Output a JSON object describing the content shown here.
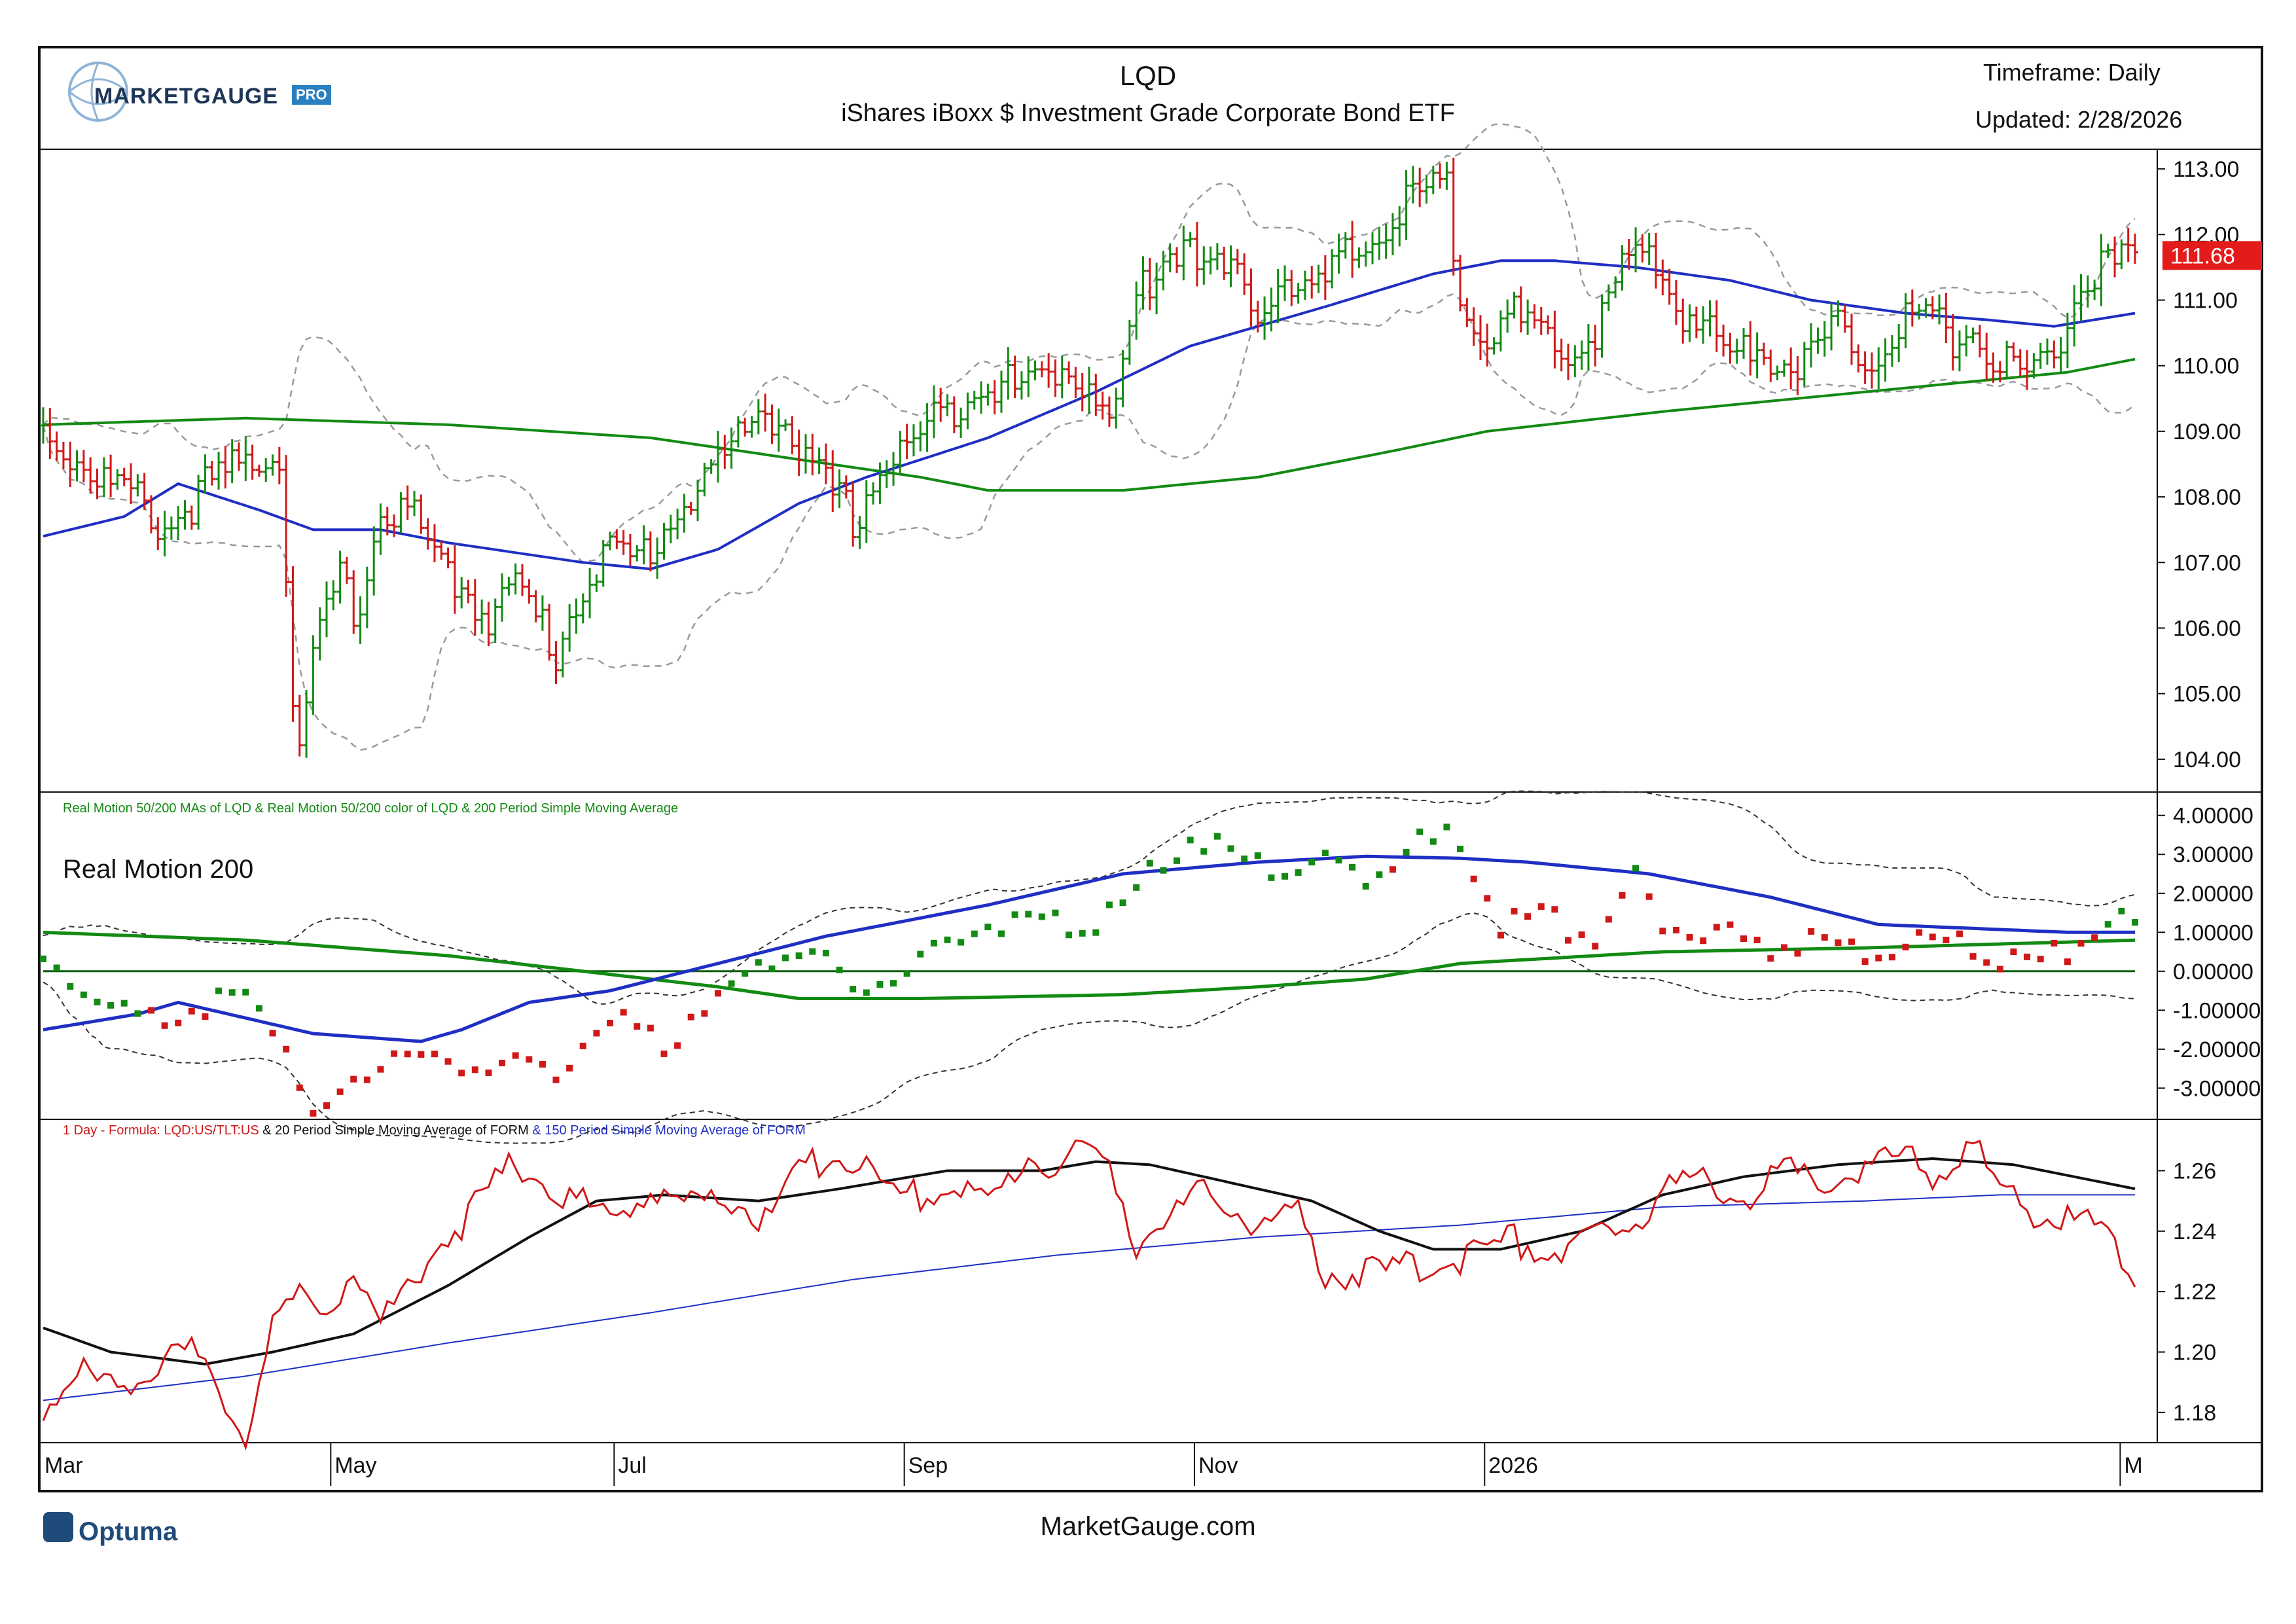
{
  "header": {
    "symbol": "LQD",
    "name": "iShares iBoxx $ Investment Grade Corporate Bond ETF",
    "timeframe": "Timeframe: Daily",
    "updated": "Updated: 2/28/2026",
    "logo_text": "MARKETGAUGE",
    "logo_badge": "PRO"
  },
  "footer": {
    "brand": "Optuma",
    "site": "MarketGauge.com"
  },
  "colors": {
    "up": "#138a13",
    "down": "#d01818",
    "ma_blue": "#1f2fc4",
    "ma_green": "#138a13",
    "band": "#9a9a9a",
    "last_price_bg": "#e31b1b"
  },
  "chart_data": [
    {
      "id": "price",
      "type": "ohlc",
      "title": "LQD",
      "ylim": [
        103.5,
        113.3
      ],
      "yticks": [
        "113.00",
        "112.00",
        "111.00",
        "110.00",
        "109.00",
        "108.00",
        "107.00",
        "106.00",
        "105.00",
        "104.00"
      ],
      "x_months": [
        "Mar",
        "May",
        "Jul",
        "Sep",
        "Nov",
        "2026",
        "M"
      ],
      "last_price": "111.68",
      "anchors_close": [
        [
          0,
          109.2
        ],
        [
          8,
          108.5
        ],
        [
          14,
          108.1
        ],
        [
          18,
          107.7
        ],
        [
          24,
          108.3
        ],
        [
          30,
          108.7
        ],
        [
          35,
          108.9
        ],
        [
          36,
          107.0
        ],
        [
          37,
          105.0
        ],
        [
          38,
          104.3
        ],
        [
          40,
          105.6
        ],
        [
          42,
          106.4
        ],
        [
          44,
          107.0
        ],
        [
          46,
          106.3
        ],
        [
          50,
          107.9
        ],
        [
          54,
          108.0
        ],
        [
          58,
          107.2
        ],
        [
          62,
          106.8
        ],
        [
          66,
          106.4
        ],
        [
          70,
          106.8
        ],
        [
          74,
          106.2
        ],
        [
          76,
          105.8
        ],
        [
          80,
          106.9
        ],
        [
          84,
          107.3
        ],
        [
          88,
          107.2
        ],
        [
          92,
          107.7
        ],
        [
          96,
          108.2
        ],
        [
          100,
          108.7
        ],
        [
          104,
          109.1
        ],
        [
          106,
          109.6
        ],
        [
          110,
          109.3
        ],
        [
          114,
          108.5
        ],
        [
          118,
          108.1
        ],
        [
          120,
          107.8
        ],
        [
          124,
          108.6
        ],
        [
          128,
          108.9
        ],
        [
          132,
          109.3
        ],
        [
          136,
          109.7
        ],
        [
          140,
          110.0
        ],
        [
          144,
          109.8
        ],
        [
          148,
          110.0
        ],
        [
          152,
          110.2
        ],
        [
          156,
          109.8
        ],
        [
          158,
          109.2
        ],
        [
          160,
          110.1
        ],
        [
          162,
          111.2
        ],
        [
          166,
          111.8
        ],
        [
          170,
          112.2
        ],
        [
          172,
          111.7
        ],
        [
          176,
          111.5
        ],
        [
          180,
          111.1
        ],
        [
          184,
          111.6
        ],
        [
          188,
          111.2
        ],
        [
          192,
          111.7
        ],
        [
          196,
          112.0
        ],
        [
          200,
          112.4
        ],
        [
          204,
          112.8
        ],
        [
          208,
          112.8
        ],
        [
          210,
          111.4
        ],
        [
          214,
          110.6
        ],
        [
          218,
          110.9
        ],
        [
          222,
          110.5
        ],
        [
          226,
          110.4
        ],
        [
          230,
          110.7
        ],
        [
          234,
          111.6
        ],
        [
          238,
          111.9
        ],
        [
          242,
          111.1
        ],
        [
          246,
          110.8
        ],
        [
          250,
          110.3
        ],
        [
          254,
          110.6
        ],
        [
          258,
          110.2
        ],
        [
          262,
          110.3
        ],
        [
          266,
          110.8
        ],
        [
          270,
          110.3
        ],
        [
          274,
          110.7
        ],
        [
          278,
          111.0
        ],
        [
          282,
          110.6
        ],
        [
          286,
          110.7
        ],
        [
          290,
          110.2
        ],
        [
          294,
          110.0
        ],
        [
          298,
          110.4
        ],
        [
          302,
          111.4
        ],
        [
          306,
          111.7
        ],
        [
          310,
          111.68
        ]
      ],
      "ma50_anchors": [
        [
          0,
          107.4
        ],
        [
          12,
          107.7
        ],
        [
          20,
          108.2
        ],
        [
          26,
          108.0
        ],
        [
          32,
          107.8
        ],
        [
          40,
          107.5
        ],
        [
          50,
          107.5
        ],
        [
          60,
          107.3
        ],
        [
          80,
          107.0
        ],
        [
          90,
          106.9
        ],
        [
          100,
          107.2
        ],
        [
          112,
          107.9
        ],
        [
          122,
          108.3
        ],
        [
          140,
          108.9
        ],
        [
          156,
          109.6
        ],
        [
          170,
          110.3
        ],
        [
          190,
          110.9
        ],
        [
          206,
          111.4
        ],
        [
          216,
          111.6
        ],
        [
          224,
          111.6
        ],
        [
          236,
          111.5
        ],
        [
          250,
          111.3
        ],
        [
          262,
          111.0
        ],
        [
          276,
          110.8
        ],
        [
          288,
          110.7
        ],
        [
          298,
          110.6
        ],
        [
          310,
          110.8
        ]
      ],
      "ma200_anchors": [
        [
          0,
          109.1
        ],
        [
          30,
          109.2
        ],
        [
          60,
          109.1
        ],
        [
          90,
          108.9
        ],
        [
          110,
          108.6
        ],
        [
          130,
          108.3
        ],
        [
          140,
          108.1
        ],
        [
          160,
          108.1
        ],
        [
          180,
          108.3
        ],
        [
          200,
          108.7
        ],
        [
          214,
          109.0
        ],
        [
          240,
          109.3
        ],
        [
          260,
          109.5
        ],
        [
          280,
          109.7
        ],
        [
          300,
          109.9
        ],
        [
          310,
          110.1
        ]
      ]
    },
    {
      "id": "real-motion",
      "type": "scatter",
      "title": "Real Motion 200",
      "description": "Real Motion 50/200 MAs of LQD & Real Motion 50/200 color of LQD & 200 Period Simple Moving Average",
      "ylim": [
        -3.8,
        4.6
      ],
      "yticks": [
        "4.00000",
        "3.00000",
        "2.00000",
        "1.00000",
        "0.00000",
        "-1.00000",
        "-2.00000",
        "-3.00000"
      ],
      "anchors": [
        [
          0,
          0.4
        ],
        [
          10,
          -0.8
        ],
        [
          16,
          -1.0
        ],
        [
          24,
          -0.7
        ],
        [
          32,
          -0.6
        ],
        [
          36,
          -1.8
        ],
        [
          40,
          -3.6
        ],
        [
          44,
          -3.0
        ],
        [
          48,
          -2.4
        ],
        [
          52,
          -1.8
        ],
        [
          56,
          -2.0
        ],
        [
          62,
          -2.4
        ],
        [
          70,
          -2.0
        ],
        [
          76,
          -2.8
        ],
        [
          80,
          -1.4
        ],
        [
          86,
          -1.2
        ],
        [
          92,
          -1.8
        ],
        [
          98,
          -0.6
        ],
        [
          104,
          0.0
        ],
        [
          110,
          0.7
        ],
        [
          116,
          0.4
        ],
        [
          120,
          -0.4
        ],
        [
          126,
          0.0
        ],
        [
          132,
          0.6
        ],
        [
          140,
          1.4
        ],
        [
          148,
          1.3
        ],
        [
          156,
          1.4
        ],
        [
          160,
          1.8
        ],
        [
          166,
          3.0
        ],
        [
          170,
          3.6
        ],
        [
          176,
          3.2
        ],
        [
          182,
          2.7
        ],
        [
          190,
          2.9
        ],
        [
          196,
          2.6
        ],
        [
          202,
          3.4
        ],
        [
          210,
          3.6
        ],
        [
          212,
          2.8
        ],
        [
          216,
          1.4
        ],
        [
          222,
          1.6
        ],
        [
          230,
          1.0
        ],
        [
          236,
          2.6
        ],
        [
          240,
          1.5
        ],
        [
          248,
          1.2
        ],
        [
          256,
          0.8
        ],
        [
          264,
          1.0
        ],
        [
          272,
          0.6
        ],
        [
          280,
          1.0
        ],
        [
          288,
          0.6
        ],
        [
          294,
          0.3
        ],
        [
          300,
          0.7
        ],
        [
          306,
          1.4
        ],
        [
          310,
          1.4
        ]
      ],
      "ma50_anchors": [
        [
          0,
          -1.5
        ],
        [
          14,
          -1.1
        ],
        [
          20,
          -0.8
        ],
        [
          30,
          -1.2
        ],
        [
          40,
          -1.6
        ],
        [
          56,
          -1.8
        ],
        [
          62,
          -1.5
        ],
        [
          72,
          -0.8
        ],
        [
          84,
          -0.5
        ],
        [
          100,
          0.2
        ],
        [
          116,
          0.9
        ],
        [
          140,
          1.7
        ],
        [
          160,
          2.5
        ],
        [
          180,
          2.8
        ],
        [
          196,
          2.95
        ],
        [
          210,
          2.9
        ],
        [
          220,
          2.8
        ],
        [
          238,
          2.5
        ],
        [
          256,
          1.9
        ],
        [
          272,
          1.2
        ],
        [
          286,
          1.1
        ],
        [
          300,
          1.0
        ],
        [
          310,
          1.0
        ]
      ],
      "ma200_anchors": [
        [
          0,
          1.0
        ],
        [
          30,
          0.8
        ],
        [
          60,
          0.4
        ],
        [
          80,
          0.0
        ],
        [
          100,
          -0.4
        ],
        [
          112,
          -0.7
        ],
        [
          130,
          -0.7
        ],
        [
          160,
          -0.6
        ],
        [
          180,
          -0.4
        ],
        [
          196,
          -0.2
        ],
        [
          210,
          0.2
        ],
        [
          240,
          0.5
        ],
        [
          270,
          0.6
        ],
        [
          290,
          0.7
        ],
        [
          310,
          0.8
        ]
      ],
      "zero_line": 0
    },
    {
      "id": "ratio",
      "type": "line",
      "description_parts": [
        "1 Day - Formula: LQD:US/TLT:US",
        " & 20 Period Simple Moving Average of FORM",
        " & 150 Period Simple Moving Average of FORM"
      ],
      "ylim": [
        1.17,
        1.277
      ],
      "yticks": [
        "1.26",
        "1.24",
        "1.22",
        "1.20",
        "1.18"
      ],
      "anchors": [
        [
          0,
          1.185
        ],
        [
          6,
          1.195
        ],
        [
          10,
          1.192
        ],
        [
          16,
          1.198
        ],
        [
          22,
          1.202
        ],
        [
          26,
          1.19
        ],
        [
          30,
          1.176
        ],
        [
          34,
          1.21
        ],
        [
          38,
          1.222
        ],
        [
          42,
          1.218
        ],
        [
          46,
          1.23
        ],
        [
          50,
          1.212
        ],
        [
          56,
          1.232
        ],
        [
          62,
          1.246
        ],
        [
          66,
          1.256
        ],
        [
          70,
          1.266
        ],
        [
          74,
          1.26
        ],
        [
          78,
          1.254
        ],
        [
          84,
          1.248
        ],
        [
          90,
          1.256
        ],
        [
          96,
          1.252
        ],
        [
          102,
          1.254
        ],
        [
          108,
          1.246
        ],
        [
          112,
          1.262
        ],
        [
          118,
          1.27
        ],
        [
          122,
          1.262
        ],
        [
          128,
          1.254
        ],
        [
          134,
          1.258
        ],
        [
          140,
          1.252
        ],
        [
          146,
          1.268
        ],
        [
          150,
          1.264
        ],
        [
          154,
          1.27
        ],
        [
          158,
          1.265
        ],
        [
          162,
          1.24
        ],
        [
          168,
          1.248
        ],
        [
          172,
          1.256
        ],
        [
          176,
          1.25
        ],
        [
          182,
          1.244
        ],
        [
          186,
          1.248
        ],
        [
          190,
          1.23
        ],
        [
          196,
          1.228
        ],
        [
          200,
          1.23
        ],
        [
          206,
          1.232
        ],
        [
          212,
          1.236
        ],
        [
          218,
          1.24
        ],
        [
          224,
          1.236
        ],
        [
          230,
          1.24
        ],
        [
          236,
          1.246
        ],
        [
          240,
          1.258
        ],
        [
          246,
          1.26
        ],
        [
          252,
          1.254
        ],
        [
          258,
          1.262
        ],
        [
          264,
          1.26
        ],
        [
          270,
          1.264
        ],
        [
          276,
          1.268
        ],
        [
          280,
          1.262
        ],
        [
          286,
          1.27
        ],
        [
          290,
          1.258
        ],
        [
          294,
          1.25
        ],
        [
          298,
          1.248
        ],
        [
          304,
          1.244
        ],
        [
          310,
          1.23
        ]
      ],
      "ma20_anchors": [
        [
          0,
          1.208
        ],
        [
          10,
          1.2
        ],
        [
          24,
          1.196
        ],
        [
          34,
          1.2
        ],
        [
          46,
          1.206
        ],
        [
          60,
          1.222
        ],
        [
          72,
          1.238
        ],
        [
          82,
          1.25
        ],
        [
          92,
          1.252
        ],
        [
          106,
          1.25
        ],
        [
          118,
          1.254
        ],
        [
          134,
          1.26
        ],
        [
          148,
          1.26
        ],
        [
          156,
          1.263
        ],
        [
          164,
          1.262
        ],
        [
          176,
          1.256
        ],
        [
          188,
          1.25
        ],
        [
          198,
          1.24
        ],
        [
          206,
          1.234
        ],
        [
          216,
          1.234
        ],
        [
          228,
          1.24
        ],
        [
          240,
          1.252
        ],
        [
          252,
          1.258
        ],
        [
          266,
          1.262
        ],
        [
          280,
          1.264
        ],
        [
          292,
          1.262
        ],
        [
          310,
          1.254
        ]
      ],
      "ma150_anchors": [
        [
          0,
          1.184
        ],
        [
          30,
          1.192
        ],
        [
          60,
          1.203
        ],
        [
          90,
          1.213
        ],
        [
          120,
          1.224
        ],
        [
          150,
          1.232
        ],
        [
          180,
          1.238
        ],
        [
          210,
          1.242
        ],
        [
          240,
          1.248
        ],
        [
          270,
          1.25
        ],
        [
          290,
          1.252
        ],
        [
          310,
          1.252
        ]
      ]
    }
  ]
}
